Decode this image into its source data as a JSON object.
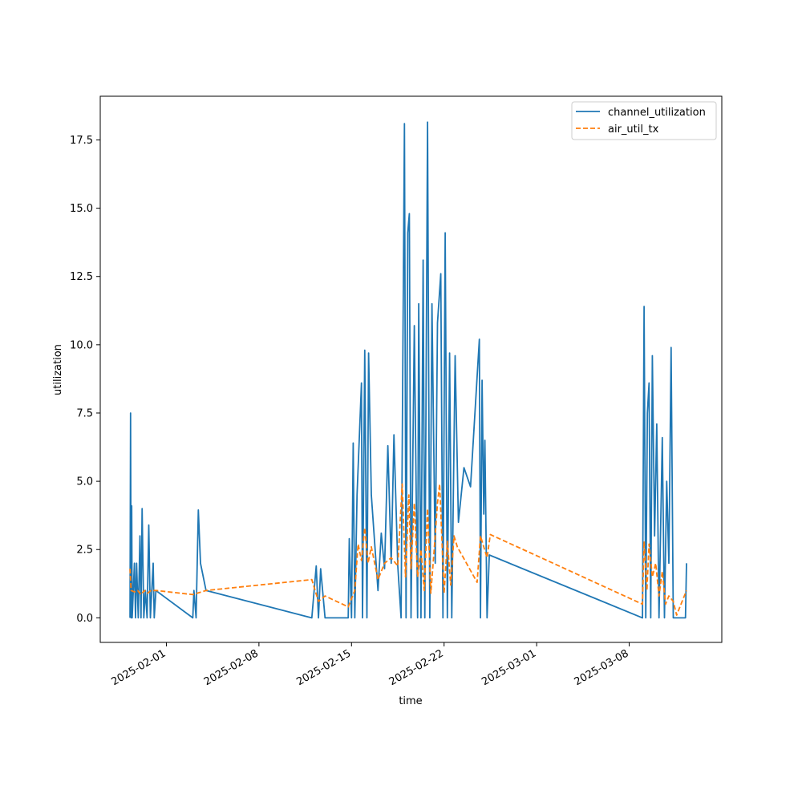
{
  "chart_data": {
    "type": "line",
    "title": "",
    "xlabel": "time",
    "ylabel": "utilization",
    "xlim": [
      "2025-01-27",
      "2025-03-15"
    ],
    "ylim": [
      -0.9,
      19.1
    ],
    "x_ticks": [
      "2025-02-01",
      "2025-02-08",
      "2025-02-15",
      "2025-02-22",
      "2025-03-01",
      "2025-03-08"
    ],
    "y_ticks": [
      0.0,
      2.5,
      5.0,
      7.5,
      10.0,
      12.5,
      15.0,
      17.5
    ],
    "grid": false,
    "legend_position": "top-right",
    "series": [
      {
        "name": "channel_utilization",
        "color": "#1f77b4",
        "style": "solid",
        "points": [
          [
            "2025-01-29T06:00",
            0.0
          ],
          [
            "2025-01-29T07:00",
            7.5
          ],
          [
            "2025-01-29T08:00",
            0.0
          ],
          [
            "2025-01-29T09:00",
            4.1
          ],
          [
            "2025-01-29T10:00",
            0.0
          ],
          [
            "2025-01-29T14:00",
            2.0
          ],
          [
            "2025-01-29T16:00",
            0.0
          ],
          [
            "2025-01-29T18:00",
            2.0
          ],
          [
            "2025-01-29T21:00",
            0.0
          ],
          [
            "2025-01-30T00:00",
            3.0
          ],
          [
            "2025-01-30T02:00",
            0.0
          ],
          [
            "2025-01-30T04:00",
            4.0
          ],
          [
            "2025-01-30T07:00",
            0.0
          ],
          [
            "2025-01-30T10:00",
            1.0
          ],
          [
            "2025-01-30T13:00",
            0.0
          ],
          [
            "2025-01-30T16:00",
            3.4
          ],
          [
            "2025-01-30T19:00",
            0.0
          ],
          [
            "2025-01-31T00:00",
            2.0
          ],
          [
            "2025-01-31T02:00",
            0.0
          ],
          [
            "2025-01-31T05:00",
            1.0
          ],
          [
            "2025-02-03T00:00",
            0.0
          ],
          [
            "2025-02-03T02:00",
            1.0
          ],
          [
            "2025-02-03T06:00",
            0.0
          ],
          [
            "2025-02-03T08:00",
            2.0
          ],
          [
            "2025-02-03T10:00",
            3.95
          ],
          [
            "2025-02-03T14:00",
            2.0
          ],
          [
            "2025-02-04T00:00",
            1.0
          ],
          [
            "2025-02-12T00:00",
            0.0
          ],
          [
            "2025-02-12T08:00",
            1.9
          ],
          [
            "2025-02-12T12:00",
            0.0
          ],
          [
            "2025-02-12T16:00",
            1.8
          ],
          [
            "2025-02-13T00:00",
            0.0
          ],
          [
            "2025-02-14T18:00",
            0.0
          ],
          [
            "2025-02-14T20:00",
            2.9
          ],
          [
            "2025-02-15T00:00",
            0.0
          ],
          [
            "2025-02-15T03:00",
            6.4
          ],
          [
            "2025-02-15T06:00",
            0.0
          ],
          [
            "2025-02-15T10:00",
            4.5
          ],
          [
            "2025-02-15T14:00",
            6.5
          ],
          [
            "2025-02-15T18:00",
            8.6
          ],
          [
            "2025-02-15T20:00",
            0.0
          ],
          [
            "2025-02-16T00:00",
            9.8
          ],
          [
            "2025-02-16T04:00",
            0.0
          ],
          [
            "2025-02-16T07:00",
            9.7
          ],
          [
            "2025-02-16T12:00",
            4.5
          ],
          [
            "2025-02-17T00:00",
            1.0
          ],
          [
            "2025-02-17T06:00",
            3.1
          ],
          [
            "2025-02-17T12:00",
            1.8
          ],
          [
            "2025-02-17T18:00",
            6.3
          ],
          [
            "2025-02-18T00:00",
            2.0
          ],
          [
            "2025-02-18T05:00",
            6.7
          ],
          [
            "2025-02-18T12:00",
            1.9
          ],
          [
            "2025-02-18T18:00",
            0.0
          ],
          [
            "2025-02-19T00:00",
            18.1
          ],
          [
            "2025-02-19T03:00",
            0.0
          ],
          [
            "2025-02-19T06:00",
            14.1
          ],
          [
            "2025-02-19T09:00",
            14.8
          ],
          [
            "2025-02-19T12:00",
            0.0
          ],
          [
            "2025-02-19T18:00",
            10.7
          ],
          [
            "2025-02-20T00:00",
            0.0
          ],
          [
            "2025-02-20T02:00",
            11.5
          ],
          [
            "2025-02-20T06:00",
            0.0
          ],
          [
            "2025-02-20T10:00",
            13.1
          ],
          [
            "2025-02-20T13:00",
            0.0
          ],
          [
            "2025-02-20T18:00",
            18.15
          ],
          [
            "2025-02-20T22:00",
            0.0
          ],
          [
            "2025-02-21T02:00",
            11.5
          ],
          [
            "2025-02-21T08:00",
            2.0
          ],
          [
            "2025-02-21T12:00",
            10.8
          ],
          [
            "2025-02-21T18:00",
            12.6
          ],
          [
            "2025-02-21T22:00",
            0.0
          ],
          [
            "2025-02-22T02:00",
            14.1
          ],
          [
            "2025-02-22T06:00",
            0.0
          ],
          [
            "2025-02-22T10:00",
            9.7
          ],
          [
            "2025-02-22T14:00",
            0.0
          ],
          [
            "2025-02-22T20:00",
            9.6
          ],
          [
            "2025-02-23T02:00",
            3.5
          ],
          [
            "2025-02-23T12:00",
            5.5
          ],
          [
            "2025-02-24T00:00",
            4.8
          ],
          [
            "2025-02-24T16:00",
            10.2
          ],
          [
            "2025-02-24T18:00",
            0.0
          ],
          [
            "2025-02-24T21:00",
            8.7
          ],
          [
            "2025-02-25T00:00",
            3.8
          ],
          [
            "2025-02-25T02:00",
            6.5
          ],
          [
            "2025-02-25T06:00",
            0.0
          ],
          [
            "2025-02-25T10:00",
            2.3
          ],
          [
            "2025-03-09T00:00",
            0.0
          ],
          [
            "2025-03-09T03:00",
            11.4
          ],
          [
            "2025-03-09T06:00",
            0.0
          ],
          [
            "2025-03-09T09:00",
            7.5
          ],
          [
            "2025-03-09T12:00",
            8.6
          ],
          [
            "2025-03-09T15:00",
            0.0
          ],
          [
            "2025-03-09T18:00",
            9.6
          ],
          [
            "2025-03-09T22:00",
            3.0
          ],
          [
            "2025-03-10T02:00",
            7.1
          ],
          [
            "2025-03-10T06:00",
            0.0
          ],
          [
            "2025-03-10T12:00",
            6.6
          ],
          [
            "2025-03-10T16:00",
            0.0
          ],
          [
            "2025-03-10T20:00",
            5.0
          ],
          [
            "2025-03-11T00:00",
            2.0
          ],
          [
            "2025-03-11T04:00",
            9.9
          ],
          [
            "2025-03-11T08:00",
            0.0
          ],
          [
            "2025-03-12T06:00",
            0.0
          ],
          [
            "2025-03-12T08:00",
            2.0
          ]
        ]
      },
      {
        "name": "air_util_tx",
        "color": "#ff7f0e",
        "style": "dashed",
        "points": [
          [
            "2025-01-29T06:00",
            1.8
          ],
          [
            "2025-01-29T08:00",
            1.0
          ],
          [
            "2025-01-29T14:00",
            0.95
          ],
          [
            "2025-01-29T20:00",
            1.0
          ],
          [
            "2025-01-30T02:00",
            0.85
          ],
          [
            "2025-01-30T08:00",
            1.0
          ],
          [
            "2025-01-30T14:00",
            0.9
          ],
          [
            "2025-01-30T20:00",
            1.0
          ],
          [
            "2025-01-31T06:00",
            1.0
          ],
          [
            "2025-02-03T00:00",
            0.85
          ],
          [
            "2025-02-04T00:00",
            1.0
          ],
          [
            "2025-02-12T00:00",
            1.4
          ],
          [
            "2025-02-12T12:00",
            0.6
          ],
          [
            "2025-02-13T00:00",
            0.8
          ],
          [
            "2025-02-14T18:00",
            0.4
          ],
          [
            "2025-02-15T06:00",
            1.0
          ],
          [
            "2025-02-15T12:00",
            2.7
          ],
          [
            "2025-02-15T18:00",
            2.1
          ],
          [
            "2025-02-16T00:00",
            3.3
          ],
          [
            "2025-02-16T06:00",
            2.0
          ],
          [
            "2025-02-16T12:00",
            2.6
          ],
          [
            "2025-02-17T00:00",
            1.4
          ],
          [
            "2025-02-17T12:00",
            2.0
          ],
          [
            "2025-02-18T00:00",
            2.2
          ],
          [
            "2025-02-18T12:00",
            1.9
          ],
          [
            "2025-02-18T20:00",
            4.9
          ],
          [
            "2025-02-19T02:00",
            1.5
          ],
          [
            "2025-02-19T08:00",
            4.5
          ],
          [
            "2025-02-19T12:00",
            1.8
          ],
          [
            "2025-02-19T18:00",
            4.2
          ],
          [
            "2025-02-20T00:00",
            1.5
          ],
          [
            "2025-02-20T06:00",
            2.5
          ],
          [
            "2025-02-20T12:00",
            1.0
          ],
          [
            "2025-02-20T18:00",
            4.0
          ],
          [
            "2025-02-21T00:00",
            0.9
          ],
          [
            "2025-02-21T06:00",
            2.5
          ],
          [
            "2025-02-21T12:00",
            4.2
          ],
          [
            "2025-02-21T16:00",
            4.9
          ],
          [
            "2025-02-22T00:00",
            0.9
          ],
          [
            "2025-02-22T06:00",
            2.8
          ],
          [
            "2025-02-22T12:00",
            1.2
          ],
          [
            "2025-02-22T18:00",
            3.0
          ],
          [
            "2025-02-23T00:00",
            2.6
          ],
          [
            "2025-02-24T12:00",
            1.3
          ],
          [
            "2025-02-24T18:00",
            3.0
          ],
          [
            "2025-02-25T06:00",
            2.2
          ],
          [
            "2025-02-25T12:00",
            3.05
          ],
          [
            "2025-03-09T00:00",
            0.5
          ],
          [
            "2025-03-09T03:00",
            2.8
          ],
          [
            "2025-03-09T08:00",
            1.0
          ],
          [
            "2025-03-09T12:00",
            2.7
          ],
          [
            "2025-03-09T18:00",
            1.5
          ],
          [
            "2025-03-10T00:00",
            2.0
          ],
          [
            "2025-03-10T06:00",
            0.8
          ],
          [
            "2025-03-10T12:00",
            1.7
          ],
          [
            "2025-03-10T18:00",
            0.5
          ],
          [
            "2025-03-11T00:00",
            0.8
          ],
          [
            "2025-03-11T08:00",
            0.6
          ],
          [
            "2025-03-11T14:00",
            0.1
          ],
          [
            "2025-03-12T00:00",
            0.6
          ],
          [
            "2025-03-12T08:00",
            1.0
          ]
        ]
      }
    ]
  }
}
